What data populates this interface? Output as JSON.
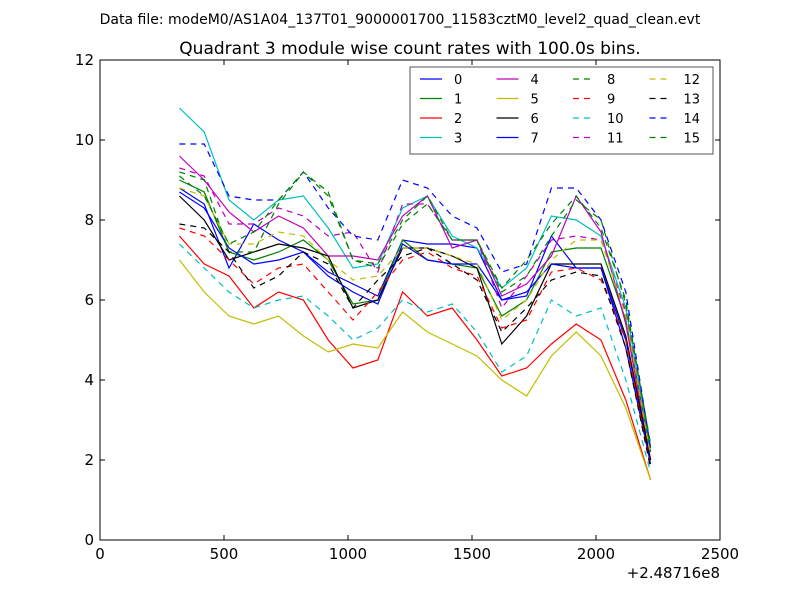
{
  "chart_data": {
    "type": "line",
    "suptitle": "Data file: modeM0/AS1A04_137T01_9000001700_11583cztM0_level2_quad_clean.evt",
    "title": "Quadrant 3 module wise count rates with 100.0s bins.",
    "xlabel": "",
    "ylabel": "",
    "x_offset_label": "+2.48716e8",
    "xlim": [
      0,
      2500
    ],
    "ylim": [
      0,
      12
    ],
    "xticks": [
      0,
      500,
      1000,
      1500,
      2000,
      2500
    ],
    "yticks": [
      0,
      2,
      4,
      6,
      8,
      10,
      12
    ],
    "grid": false,
    "legend_position": "top-right",
    "legend_columns": 4,
    "x": [
      320,
      420,
      520,
      620,
      720,
      820,
      920,
      1020,
      1120,
      1220,
      1320,
      1420,
      1520,
      1620,
      1720,
      1820,
      1920,
      2020,
      2120,
      2220
    ],
    "series": [
      {
        "name": "0",
        "color": "#0000ff",
        "dash": "solid",
        "values": [
          8.8,
          8.4,
          6.8,
          7.9,
          7.5,
          7.2,
          6.7,
          6.4,
          6.1,
          7.5,
          7.4,
          7.4,
          7.3,
          6.0,
          6.1,
          7.6,
          6.8,
          6.8,
          5.0,
          2.0
        ]
      },
      {
        "name": "1",
        "color": "#008000",
        "dash": "solid",
        "values": [
          9.0,
          8.7,
          7.2,
          7.0,
          7.2,
          7.5,
          7.0,
          5.9,
          6.0,
          7.5,
          7.0,
          6.9,
          6.8,
          5.6,
          6.0,
          7.2,
          7.3,
          7.3,
          5.5,
          2.2
        ]
      },
      {
        "name": "2",
        "color": "#ff0000",
        "dash": "solid",
        "values": [
          7.6,
          6.9,
          6.6,
          5.8,
          6.2,
          6.0,
          5.0,
          4.3,
          4.5,
          6.2,
          5.6,
          5.8,
          5.0,
          4.1,
          4.3,
          4.9,
          5.4,
          5.0,
          3.5,
          1.5
        ]
      },
      {
        "name": "3",
        "color": "#00bfbf",
        "dash": "solid",
        "values": [
          10.8,
          10.2,
          8.5,
          8.0,
          8.5,
          8.6,
          7.8,
          6.8,
          6.9,
          8.3,
          8.6,
          7.6,
          7.3,
          6.3,
          6.8,
          8.1,
          8.0,
          7.6,
          5.8,
          2.3
        ]
      },
      {
        "name": "4",
        "color": "#bf00bf",
        "dash": "solid",
        "values": [
          9.6,
          9.0,
          8.2,
          7.7,
          8.1,
          7.8,
          7.1,
          7.1,
          7.0,
          8.1,
          8.6,
          7.3,
          7.5,
          6.1,
          6.4,
          7.1,
          8.6,
          7.7,
          5.4,
          2.0
        ]
      },
      {
        "name": "5",
        "color": "#bfbf00",
        "dash": "solid",
        "values": [
          7.0,
          6.2,
          5.6,
          5.4,
          5.6,
          5.1,
          4.7,
          4.9,
          4.8,
          5.7,
          5.2,
          4.9,
          4.6,
          4.0,
          3.6,
          4.6,
          5.2,
          4.6,
          3.3,
          1.5
        ]
      },
      {
        "name": "6",
        "color": "#000000",
        "dash": "solid",
        "values": [
          8.6,
          8.0,
          7.0,
          7.2,
          7.4,
          7.3,
          7.1,
          5.8,
          6.0,
          7.3,
          7.3,
          7.1,
          6.8,
          4.9,
          5.6,
          6.9,
          6.9,
          6.9,
          5.1,
          2.0
        ]
      },
      {
        "name": "7",
        "color": "#0000ff",
        "dash": "solid",
        "values": [
          8.7,
          8.3,
          7.3,
          6.9,
          7.0,
          7.2,
          6.6,
          6.2,
          5.9,
          7.4,
          7.0,
          6.9,
          6.9,
          6.0,
          6.2,
          6.9,
          6.8,
          6.8,
          4.8,
          1.9
        ]
      },
      {
        "name": "8",
        "color": "#008000",
        "dash": "dashed",
        "values": [
          9.2,
          9.0,
          7.2,
          7.2,
          8.4,
          9.2,
          8.7,
          7.0,
          6.9,
          8.0,
          8.6,
          7.5,
          7.5,
          6.3,
          7.0,
          7.9,
          8.6,
          7.8,
          6.0,
          2.3
        ]
      },
      {
        "name": "9",
        "color": "#ff0000",
        "dash": "dashed",
        "values": [
          7.8,
          7.6,
          7.0,
          6.4,
          6.8,
          6.9,
          6.2,
          5.5,
          6.2,
          7.0,
          7.2,
          6.8,
          6.6,
          5.3,
          5.5,
          6.7,
          6.8,
          6.5,
          5.0,
          1.8
        ]
      },
      {
        "name": "10",
        "color": "#00bfbf",
        "dash": "dashed",
        "values": [
          7.4,
          6.8,
          6.2,
          5.8,
          6.0,
          6.1,
          5.6,
          5.0,
          5.3,
          6.0,
          5.7,
          5.9,
          5.2,
          4.2,
          4.6,
          6.0,
          5.6,
          5.8,
          4.0,
          1.7
        ]
      },
      {
        "name": "11",
        "color": "#bf00bf",
        "dash": "dashed",
        "values": [
          9.3,
          9.1,
          7.9,
          7.9,
          8.3,
          8.1,
          7.6,
          7.7,
          6.7,
          8.4,
          8.4,
          7.5,
          7.5,
          5.8,
          6.6,
          7.5,
          7.6,
          7.5,
          5.7,
          2.1
        ]
      },
      {
        "name": "12",
        "color": "#bfbf00",
        "dash": "dashed",
        "values": [
          8.8,
          8.6,
          7.4,
          7.4,
          7.7,
          7.6,
          7.0,
          6.5,
          6.6,
          7.3,
          7.3,
          7.1,
          6.9,
          5.5,
          6.0,
          7.0,
          7.5,
          7.5,
          5.6,
          2.1
        ]
      },
      {
        "name": "13",
        "color": "#000000",
        "dash": "dashed",
        "values": [
          7.9,
          7.8,
          7.2,
          6.3,
          6.6,
          7.2,
          6.9,
          5.8,
          6.5,
          7.1,
          7.3,
          6.9,
          6.5,
          5.2,
          5.8,
          6.5,
          6.7,
          6.6,
          4.8,
          1.8
        ]
      },
      {
        "name": "14",
        "color": "#0000ff",
        "dash": "dashed",
        "values": [
          9.9,
          9.9,
          8.6,
          8.5,
          8.5,
          9.2,
          8.3,
          7.6,
          7.5,
          9.0,
          8.8,
          8.1,
          7.8,
          6.7,
          6.9,
          8.8,
          8.8,
          8.0,
          6.2,
          2.3
        ]
      },
      {
        "name": "15",
        "color": "#008000",
        "dash": "dashed",
        "values": [
          9.1,
          8.6,
          7.4,
          7.7,
          8.5,
          9.2,
          8.6,
          7.0,
          6.8,
          7.9,
          8.4,
          7.5,
          7.5,
          6.2,
          6.6,
          7.6,
          8.5,
          8.0,
          5.9,
          2.4
        ]
      }
    ]
  }
}
